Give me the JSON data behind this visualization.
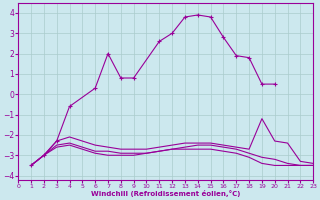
{
  "xlabel": "Windchill (Refroidissement éolien,°C)",
  "background_color": "#cce8ee",
  "line_color": "#990099",
  "grid_color": "#aacccc",
  "xlim": [
    0,
    23
  ],
  "ylim": [
    -4.2,
    4.5
  ],
  "yticks": [
    -4,
    -3,
    -2,
    -1,
    0,
    1,
    2,
    3,
    4
  ],
  "xticks": [
    0,
    1,
    2,
    3,
    4,
    5,
    6,
    7,
    8,
    9,
    10,
    11,
    12,
    13,
    14,
    15,
    16,
    17,
    18,
    19,
    20,
    21,
    22,
    23
  ],
  "series_marked": {
    "x": [
      1,
      2,
      3,
      4,
      6,
      7,
      8,
      9,
      11,
      12,
      13,
      14,
      15,
      16,
      17,
      18,
      19,
      20
    ],
    "y": [
      -3.5,
      -3.0,
      -2.3,
      -0.6,
      0.3,
      2.0,
      0.8,
      0.8,
      2.6,
      3.0,
      3.8,
      3.9,
      3.8,
      2.8,
      1.9,
      1.8,
      0.5,
      0.5
    ]
  },
  "series_smooth": [
    {
      "x": [
        1,
        2,
        3,
        4,
        5,
        6,
        7,
        8,
        9,
        10,
        11,
        12,
        13,
        14,
        15,
        16,
        17,
        18,
        19,
        20,
        21,
        22,
        23
      ],
      "y": [
        -3.5,
        -3.0,
        -2.3,
        -2.1,
        -2.3,
        -2.5,
        -2.6,
        -2.7,
        -2.7,
        -2.7,
        -2.6,
        -2.5,
        -2.4,
        -2.4,
        -2.4,
        -2.5,
        -2.6,
        -2.7,
        -1.2,
        -2.3,
        -2.4,
        -3.3,
        -3.4
      ]
    },
    {
      "x": [
        1,
        2,
        3,
        4,
        5,
        6,
        7,
        8,
        9,
        10,
        11,
        12,
        13,
        14,
        15,
        16,
        17,
        18,
        19,
        20,
        21,
        22,
        23
      ],
      "y": [
        -3.5,
        -3.0,
        -2.5,
        -2.4,
        -2.6,
        -2.8,
        -2.8,
        -2.9,
        -2.9,
        -2.9,
        -2.8,
        -2.7,
        -2.6,
        -2.5,
        -2.5,
        -2.6,
        -2.7,
        -2.9,
        -3.1,
        -3.2,
        -3.4,
        -3.5,
        -3.5
      ]
    },
    {
      "x": [
        1,
        2,
        3,
        4,
        5,
        6,
        7,
        8,
        9,
        10,
        11,
        12,
        13,
        14,
        15,
        16,
        17,
        18,
        19,
        20,
        21,
        22,
        23
      ],
      "y": [
        -3.5,
        -3.0,
        -2.6,
        -2.5,
        -2.7,
        -2.9,
        -3.0,
        -3.0,
        -3.0,
        -2.9,
        -2.8,
        -2.7,
        -2.7,
        -2.7,
        -2.7,
        -2.8,
        -2.9,
        -3.1,
        -3.4,
        -3.5,
        -3.5,
        -3.5,
        -3.5
      ]
    }
  ]
}
